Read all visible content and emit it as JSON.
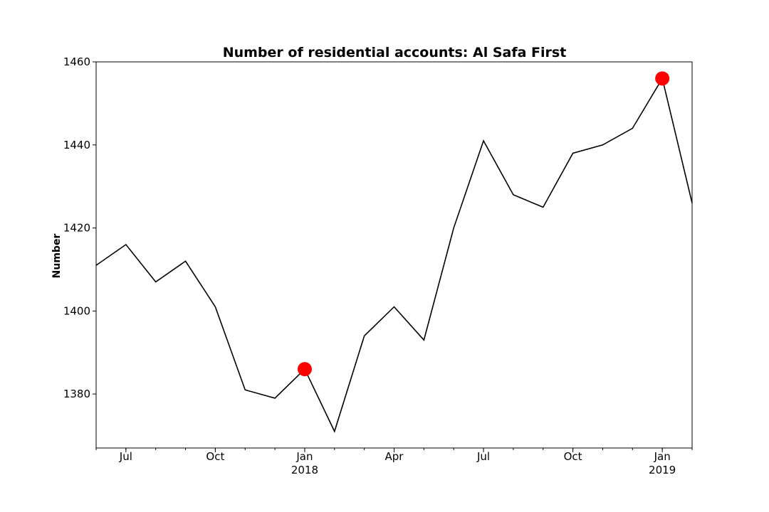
{
  "chart_data": {
    "type": "line",
    "title": "Number of residential accounts: Al Safa First",
    "xlabel": "",
    "ylabel": "Number",
    "x": [
      "2017-06",
      "2017-07",
      "2017-08",
      "2017-09",
      "2017-10",
      "2017-11",
      "2017-12",
      "2018-01",
      "2018-02",
      "2018-03",
      "2018-04",
      "2018-05",
      "2018-06",
      "2018-07",
      "2018-08",
      "2018-09",
      "2018-10",
      "2018-11",
      "2018-12",
      "2019-01",
      "2019-02"
    ],
    "series": [
      {
        "values": [
          1411,
          1416,
          1407,
          1412,
          1401,
          1381,
          1379,
          1386,
          1371,
          1394,
          1401,
          1393,
          1420,
          1441,
          1428,
          1425,
          1438,
          1440,
          1444,
          1456,
          1426
        ],
        "color": "#000000"
      }
    ],
    "highlights": [
      {
        "x": "2018-01",
        "y": 1386,
        "color": "#ff0000"
      },
      {
        "x": "2019-01",
        "y": 1456,
        "color": "#ff0000"
      }
    ],
    "ylim": [
      1367,
      1460
    ],
    "y_ticks": [
      "1380",
      "1400",
      "1420",
      "1440",
      "1460"
    ],
    "x_ticks": [
      {
        "x": "2017-07",
        "label": "Jul",
        "sub": ""
      },
      {
        "x": "2017-10",
        "label": "Oct",
        "sub": ""
      },
      {
        "x": "2018-01",
        "label": "Jan",
        "sub": "2018"
      },
      {
        "x": "2018-04",
        "label": "Apr",
        "sub": ""
      },
      {
        "x": "2018-07",
        "label": "Jul",
        "sub": ""
      },
      {
        "x": "2018-10",
        "label": "Oct",
        "sub": ""
      },
      {
        "x": "2019-01",
        "label": "Jan",
        "sub": "2019"
      }
    ],
    "grid": false,
    "legend": "none"
  }
}
